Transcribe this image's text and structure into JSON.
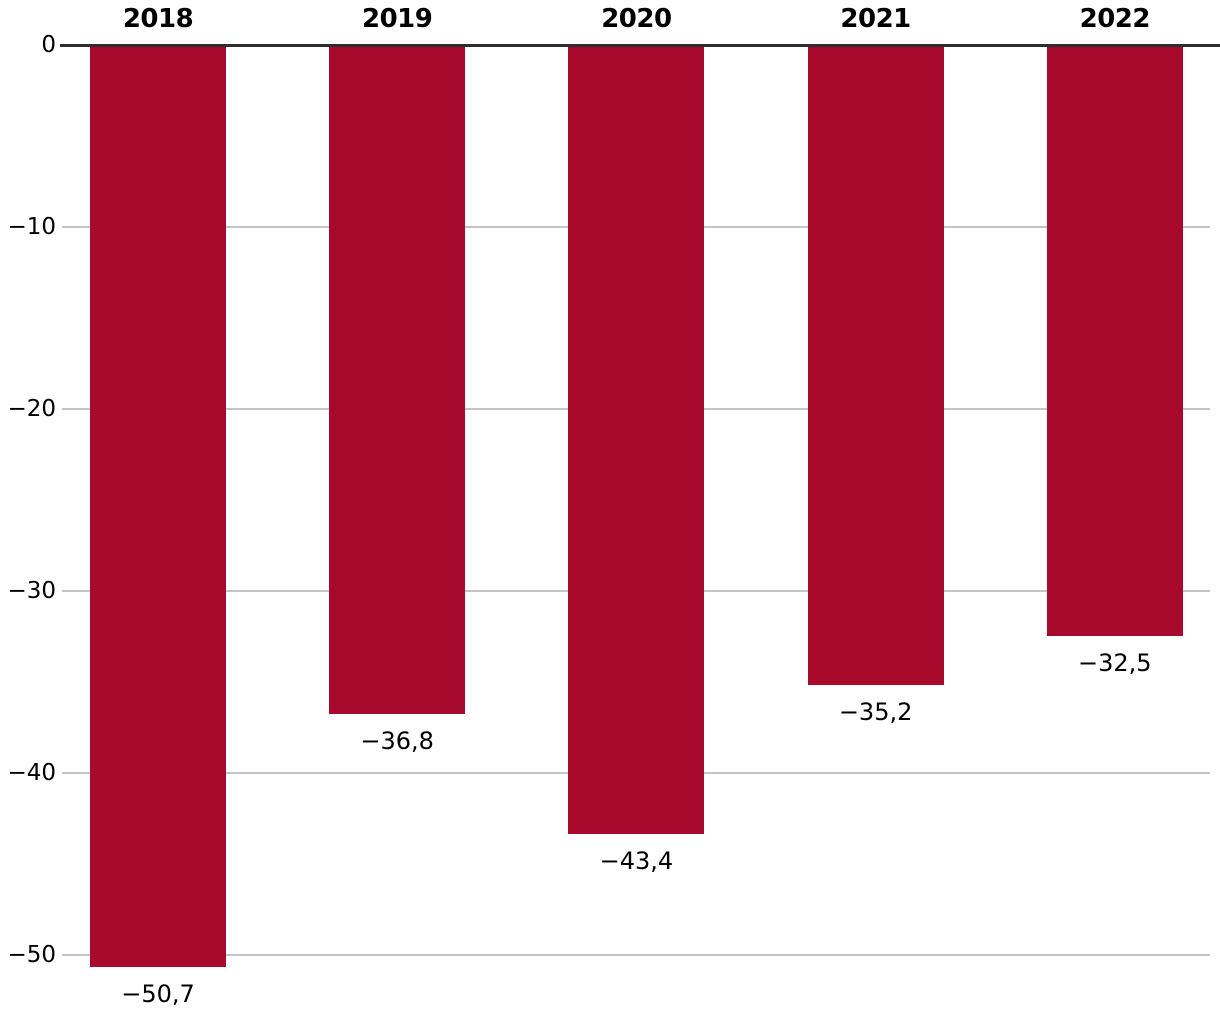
{
  "chart_data": {
    "type": "bar",
    "categories": [
      "2018",
      "2019",
      "2020",
      "2021",
      "2022"
    ],
    "values": [
      -50.7,
      -36.8,
      -43.4,
      -35.2,
      -32.5
    ],
    "value_labels": [
      "−50,7",
      "−36,8",
      "−43,4",
      "−35,2",
      "−32,5"
    ],
    "title": "",
    "xlabel": "",
    "ylabel": "",
    "ylim": [
      -55,
      0
    ],
    "y_ticks": {
      "values": [
        0,
        -10,
        -20,
        -30,
        -40,
        -50
      ],
      "labels": [
        "0",
        "−10",
        "−20",
        "−30",
        "−40",
        "−50"
      ]
    },
    "grid": true,
    "legend": null,
    "bar_orientation": "vertical",
    "value_label_position": "below-bar",
    "category_label_position": "above-axis",
    "colors": {
      "bar": "#a80a2d",
      "axis_line": "#2e2e2e",
      "gridline": "#c4c4c4",
      "text": "#000000",
      "background": "#ffffff"
    }
  }
}
